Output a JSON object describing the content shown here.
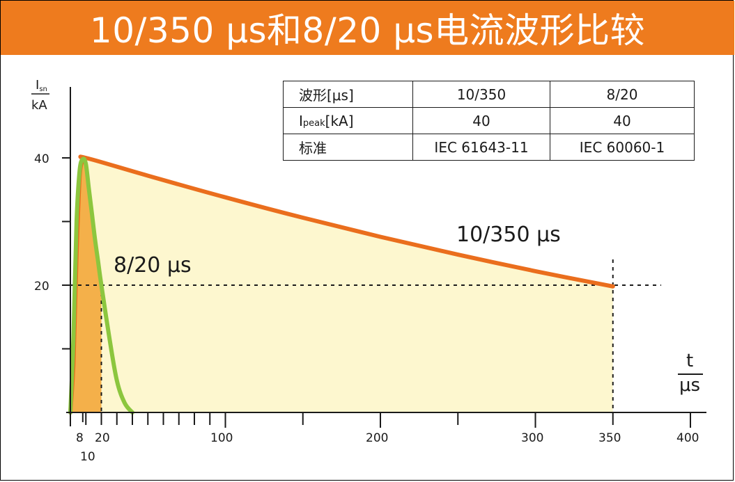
{
  "title": "10/350 μs和8/20 μs电流波形比较",
  "colors": {
    "title_bar": "#ee7b1e",
    "curve_10_350": "#ea6e1d",
    "curve_8_20": "#8cc63e",
    "fill_10_350": "#fdf7cf",
    "fill_8_20": "#f4b04a",
    "axis": "#1a1a1a"
  },
  "y_axis": {
    "label_top": "I",
    "label_top_sub": "sn",
    "label_bottom": "kA",
    "tick_labels": [
      "20",
      "40"
    ]
  },
  "x_axis": {
    "label_top": "t",
    "label_bottom": "μs",
    "tick_labels": [
      "8",
      "10",
      "20",
      "100",
      "200",
      "300",
      "350",
      "400"
    ]
  },
  "table": {
    "rows": [
      {
        "label": "波形[μs]",
        "label_sub": "",
        "label_tail": "",
        "v1": "10/350",
        "v2": "8/20"
      },
      {
        "label": "I",
        "label_sub": "peak",
        "label_tail": "[kA]",
        "v1": "40",
        "v2": "40"
      },
      {
        "label": "标准",
        "label_sub": "",
        "label_tail": "",
        "v1": "IEC 61643-11",
        "v2": "IEC 60060-1"
      }
    ]
  },
  "chart_data": {
    "type": "line",
    "title": "10/350 μs和8/20 μs电流波形比较",
    "xlabel": "t / μs",
    "ylabel": "Isn / kA",
    "xlim": [
      0,
      410
    ],
    "ylim": [
      0,
      50
    ],
    "x_ticks_major": [
      100,
      200,
      300,
      400
    ],
    "x_tick_labels": [
      8,
      10,
      20,
      100,
      200,
      300,
      350,
      400
    ],
    "y_ticks": [
      10,
      20,
      30,
      40
    ],
    "y_tick_labels": [
      20,
      40
    ],
    "series": [
      {
        "name": "10/350 μs",
        "x": [
          0,
          2,
          4,
          6,
          8,
          10,
          50,
          100,
          150,
          200,
          250,
          300,
          350
        ],
        "y": [
          0,
          8,
          25,
          37,
          39.6,
          40,
          37.2,
          33.8,
          30.6,
          27.6,
          24.8,
          22.2,
          19.8
        ]
      },
      {
        "name": "8/20 μs",
        "x": [
          0,
          2,
          4,
          6,
          8,
          10,
          12,
          14,
          16,
          18,
          20,
          25,
          30,
          35,
          40
        ],
        "y": [
          0,
          12,
          30,
          38,
          39.8,
          39,
          35,
          31,
          27,
          23.5,
          20,
          12,
          5,
          1.5,
          0
        ]
      }
    ],
    "reference_lines": [
      {
        "axis": "y",
        "value": 20
      },
      {
        "axis": "x",
        "value": 20
      },
      {
        "axis": "x",
        "value": 350
      }
    ]
  }
}
